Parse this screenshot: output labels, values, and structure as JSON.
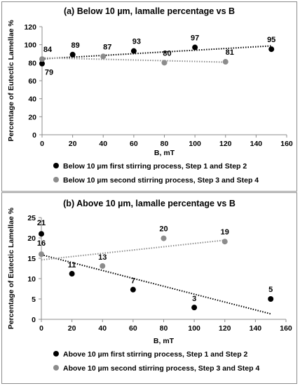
{
  "chart_data": [
    {
      "type": "scatter",
      "title": "(a) Below 10 µm,  lamalle percentage vs B",
      "xlabel": "B, mT",
      "ylabel": "Percentage of Eutectic Lamellae %",
      "xlim": [
        0,
        160
      ],
      "ylim": [
        0,
        120
      ],
      "xticks": [
        "0",
        "20",
        "40",
        "60",
        "80",
        "100",
        "120",
        "140",
        "160"
      ],
      "yticks": [
        "0",
        "20",
        "40",
        "60",
        "80",
        "100",
        "120"
      ],
      "grid": false,
      "legend_position": "bottom",
      "series": [
        {
          "name": "Below 10 µm first stirring process, Step 1 and Step 2",
          "color": "#000000",
          "x": [
            0,
            20,
            60,
            100,
            150
          ],
          "y": [
            79,
            89,
            93,
            97,
            95
          ],
          "labels": [
            "79",
            "89",
            "93",
            "97",
            "95"
          ],
          "trendline": "linear",
          "label_offsets": [
            [
              10,
              16
            ],
            [
              4,
              -10
            ],
            [
              4,
              -10
            ],
            [
              0,
              -10
            ],
            [
              0,
              -10
            ]
          ]
        },
        {
          "name": "Below 10 µm second stirring process, Step 3 and Step 4",
          "color": "#8c8c8c",
          "x": [
            0,
            40,
            80,
            120
          ],
          "y": [
            84,
            87,
            80,
            81
          ],
          "labels": [
            "84",
            "87",
            "80",
            "81"
          ],
          "trendline": "linear",
          "label_offsets": [
            [
              8,
              -10
            ],
            [
              6,
              -10
            ],
            [
              4,
              -10
            ],
            [
              6,
              -10
            ]
          ]
        }
      ]
    },
    {
      "type": "scatter",
      "title": "(b) Above 10 µm,  lamalle percentage vs B",
      "xlabel": "B, mT",
      "ylabel": "Percentage of Eutectic Lamellae %",
      "xlim": [
        0,
        160
      ],
      "ylim": [
        0,
        25
      ],
      "xticks": [
        "0",
        "20",
        "40",
        "60",
        "80",
        "100",
        "120",
        "140",
        "160"
      ],
      "yticks": [
        "0",
        "5",
        "10",
        "15",
        "20",
        "25"
      ],
      "grid": false,
      "legend_position": "bottom",
      "series": [
        {
          "name": "Above 10 µm first stirring process, Step 1 and Step 2",
          "color": "#000000",
          "x": [
            0,
            20,
            60,
            100,
            150
          ],
          "y": [
            21,
            11.2,
            7.3,
            2.9,
            5
          ],
          "labels": [
            "21",
            "11",
            "7",
            "3",
            "5"
          ],
          "trendline": "linear",
          "label_offsets": [
            [
              0,
              -12
            ],
            [
              0,
              -9
            ],
            [
              0,
              -9
            ],
            [
              0,
              -9
            ],
            [
              0,
              -10
            ]
          ]
        },
        {
          "name": "Above 10 µm second stirring process, Step 3 and Step 4",
          "color": "#8c8c8c",
          "x": [
            0,
            40,
            80,
            120
          ],
          "y": [
            16,
            13.1,
            19.9,
            19.1
          ],
          "labels": [
            "16",
            "13",
            "20",
            "19"
          ],
          "trendline": "linear",
          "label_offsets": [
            [
              0,
              -12
            ],
            [
              0,
              -9
            ],
            [
              0,
              -10
            ],
            [
              0,
              -10
            ]
          ]
        }
      ]
    }
  ]
}
